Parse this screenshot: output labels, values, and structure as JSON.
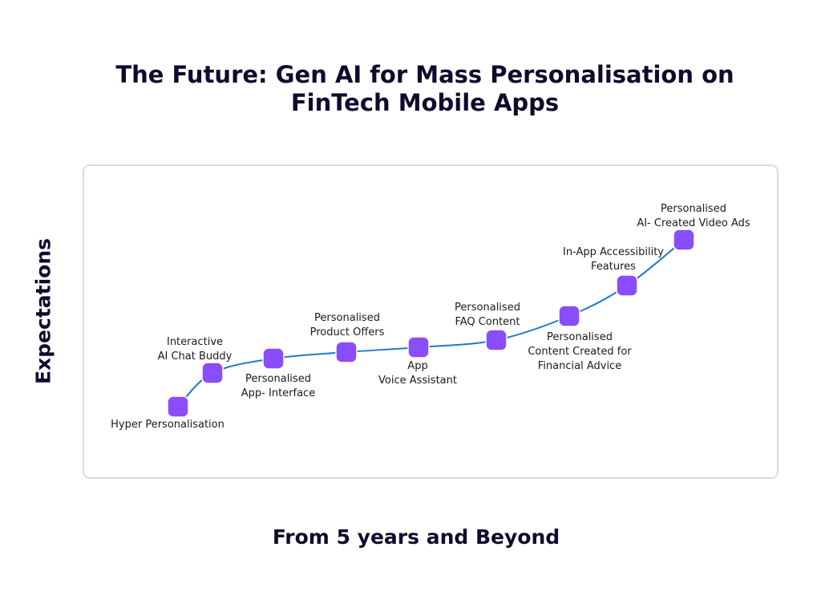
{
  "title": {
    "line1": "The Future: Gen AI for Mass Personalisation on",
    "line2": "FinTech Mobile Apps"
  },
  "y_axis_label": "Expectations",
  "x_axis_label": "From 5 years and Beyond",
  "colors": {
    "title_text": "#12092e",
    "curve": "#1f7ac9",
    "node_fill": "#8a4dfb",
    "node_stroke": "#ffffff",
    "panel_border": "#dcdcdc"
  },
  "milestones": [
    {
      "lines": [
        "Hyper Personalisation"
      ],
      "label_position": "below"
    },
    {
      "lines": [
        "Interactive",
        "AI Chat Buddy"
      ],
      "label_position": "above"
    },
    {
      "lines": [
        "Personalised",
        "App- Interface"
      ],
      "label_position": "below"
    },
    {
      "lines": [
        "Personalised",
        "Product Offers"
      ],
      "label_position": "above"
    },
    {
      "lines": [
        "App",
        "Voice Assistant"
      ],
      "label_position": "below"
    },
    {
      "lines": [
        "Personalised",
        "FAQ Content"
      ],
      "label_position": "above"
    },
    {
      "lines": [
        "Personalised",
        "Content Created for",
        "Financial Advice"
      ],
      "label_position": "below"
    },
    {
      "lines": [
        "In-App Accessibility",
        "Features"
      ],
      "label_position": "above"
    },
    {
      "lines": [
        "Personalised",
        "AI- Created Video Ads"
      ],
      "label_position": "above"
    }
  ]
}
